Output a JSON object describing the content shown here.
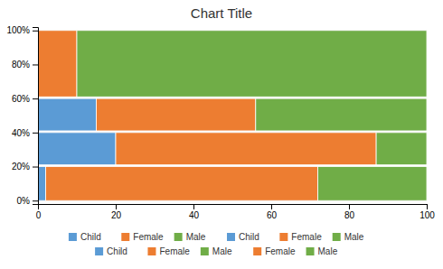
{
  "chart_data": {
    "type": "bar",
    "title": "Chart Title",
    "orientation": "horizontal",
    "stacked": true,
    "ymin": [
      0,
      21,
      41,
      61
    ],
    "ymax": [
      20,
      40,
      60,
      100
    ],
    "series": [
      {
        "name": "Child",
        "color": "#5B9BD5",
        "values": [
          2,
          20,
          15,
          0
        ]
      },
      {
        "name": "Female",
        "color": "#ED7D31",
        "values": [
          70,
          67,
          41,
          10
        ]
      },
      {
        "name": "Male",
        "color": "#70AD47",
        "values": [
          28,
          13,
          44,
          90
        ]
      }
    ],
    "xlim": [
      0,
      100
    ],
    "xticks": [
      0,
      20,
      40,
      60,
      80,
      100
    ],
    "ylim": [
      -2,
      102
    ],
    "yticks": [
      {
        "value": 0,
        "label": "0%"
      },
      {
        "value": 20,
        "label": "20%"
      },
      {
        "value": 40,
        "label": "40%"
      },
      {
        "value": 60,
        "label": "60%"
      },
      {
        "value": 80,
        "label": "80%"
      },
      {
        "value": 100,
        "label": "100%"
      }
    ],
    "grid": true,
    "legend": "bottom"
  }
}
